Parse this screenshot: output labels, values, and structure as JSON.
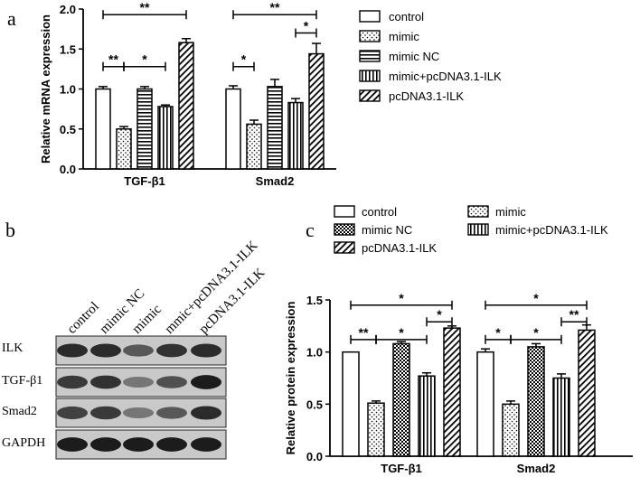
{
  "panel_labels": {
    "a": "a",
    "b": "b",
    "c": "c"
  },
  "legend_a": [
    "control",
    "mimic",
    "mimic NC",
    "mimic+pcDNA3.1-ILK",
    "pcDNA3.1-ILK"
  ],
  "legend_c": [
    "control",
    "mimic",
    "mimic NC",
    "mimic+pcDNA3.1-ILK",
    "pcDNA3.1-ILK"
  ],
  "blot": {
    "lanes": [
      "control",
      "mimic NC",
      "mimic",
      "mmic+pcDNA3.1-ILK",
      "pcDNA3.1-ILK"
    ],
    "rows": [
      "ILK",
      "TGF-β1",
      "Smad2",
      "GAPDH"
    ]
  },
  "chart_data": [
    {
      "type": "bar",
      "panel": "a",
      "ylabel": "Relative mRNA expression",
      "ylim": [
        0,
        2.0
      ],
      "yticks": [
        "0.0",
        "0.5",
        "1.0",
        "1.5",
        "2.0"
      ],
      "categories": [
        "TGF-β1",
        "Smad2"
      ],
      "series": [
        {
          "name": "control",
          "values": [
            1.0,
            1.0
          ],
          "err": [
            0.03,
            0.04
          ]
        },
        {
          "name": "mimic",
          "values": [
            0.5,
            0.56
          ],
          "err": [
            0.03,
            0.05
          ]
        },
        {
          "name": "mimic NC",
          "values": [
            1.0,
            1.03
          ],
          "err": [
            0.03,
            0.09
          ]
        },
        {
          "name": "mimic+pcDNA3.1-ILK",
          "values": [
            0.78,
            0.83
          ],
          "err": [
            0.02,
            0.05
          ]
        },
        {
          "name": "pcDNA3.1-ILK",
          "values": [
            1.58,
            1.44
          ],
          "err": [
            0.05,
            0.13
          ]
        }
      ],
      "significance": [
        {
          "group": 0,
          "from": 0,
          "to": 1,
          "label": "**",
          "y": 1.28
        },
        {
          "group": 0,
          "from": 1,
          "to": 3,
          "label": "*",
          "y": 1.28
        },
        {
          "group": 0,
          "from": 0,
          "to": 4,
          "label": "**",
          "y": 1.93
        },
        {
          "group": 1,
          "from": 0,
          "to": 1,
          "label": "*",
          "y": 1.28
        },
        {
          "group": 1,
          "from": 3,
          "to": 4,
          "label": "*",
          "y": 1.7
        },
        {
          "group": 1,
          "from": 0,
          "to": 4,
          "label": "**",
          "y": 1.93
        }
      ]
    },
    {
      "type": "bar",
      "panel": "c",
      "ylabel": "Relative protein expression",
      "ylim": [
        0,
        1.5
      ],
      "yticks": [
        "0.0",
        "0.5",
        "1.0",
        "1.5"
      ],
      "categories": [
        "TGF-β1",
        "Smad2"
      ],
      "series": [
        {
          "name": "control",
          "values": [
            1.0,
            1.0
          ],
          "err": [
            0.0,
            0.03
          ]
        },
        {
          "name": "mimic",
          "values": [
            0.51,
            0.5
          ],
          "err": [
            0.02,
            0.03
          ]
        },
        {
          "name": "mimic NC",
          "values": [
            1.08,
            1.05
          ],
          "err": [
            0.02,
            0.03
          ]
        },
        {
          "name": "mimic+pcDNA3.1-ILK",
          "values": [
            0.77,
            0.75
          ],
          "err": [
            0.03,
            0.04
          ]
        },
        {
          "name": "pcDNA3.1-ILK",
          "values": [
            1.23,
            1.21
          ],
          "err": [
            0.02,
            0.05
          ]
        }
      ],
      "significance": [
        {
          "group": 0,
          "from": 0,
          "to": 1,
          "label": "**",
          "y": 1.12
        },
        {
          "group": 0,
          "from": 1,
          "to": 3,
          "label": "*",
          "y": 1.12
        },
        {
          "group": 0,
          "from": 3,
          "to": 4,
          "label": "*",
          "y": 1.29
        },
        {
          "group": 0,
          "from": 0,
          "to": 4,
          "label": "*",
          "y": 1.45
        },
        {
          "group": 1,
          "from": 0,
          "to": 1,
          "label": "*",
          "y": 1.12
        },
        {
          "group": 1,
          "from": 1,
          "to": 3,
          "label": "*",
          "y": 1.12
        },
        {
          "group": 1,
          "from": 3,
          "to": 4,
          "label": "**",
          "y": 1.29
        },
        {
          "group": 1,
          "from": 0,
          "to": 4,
          "label": "*",
          "y": 1.45
        }
      ]
    }
  ]
}
